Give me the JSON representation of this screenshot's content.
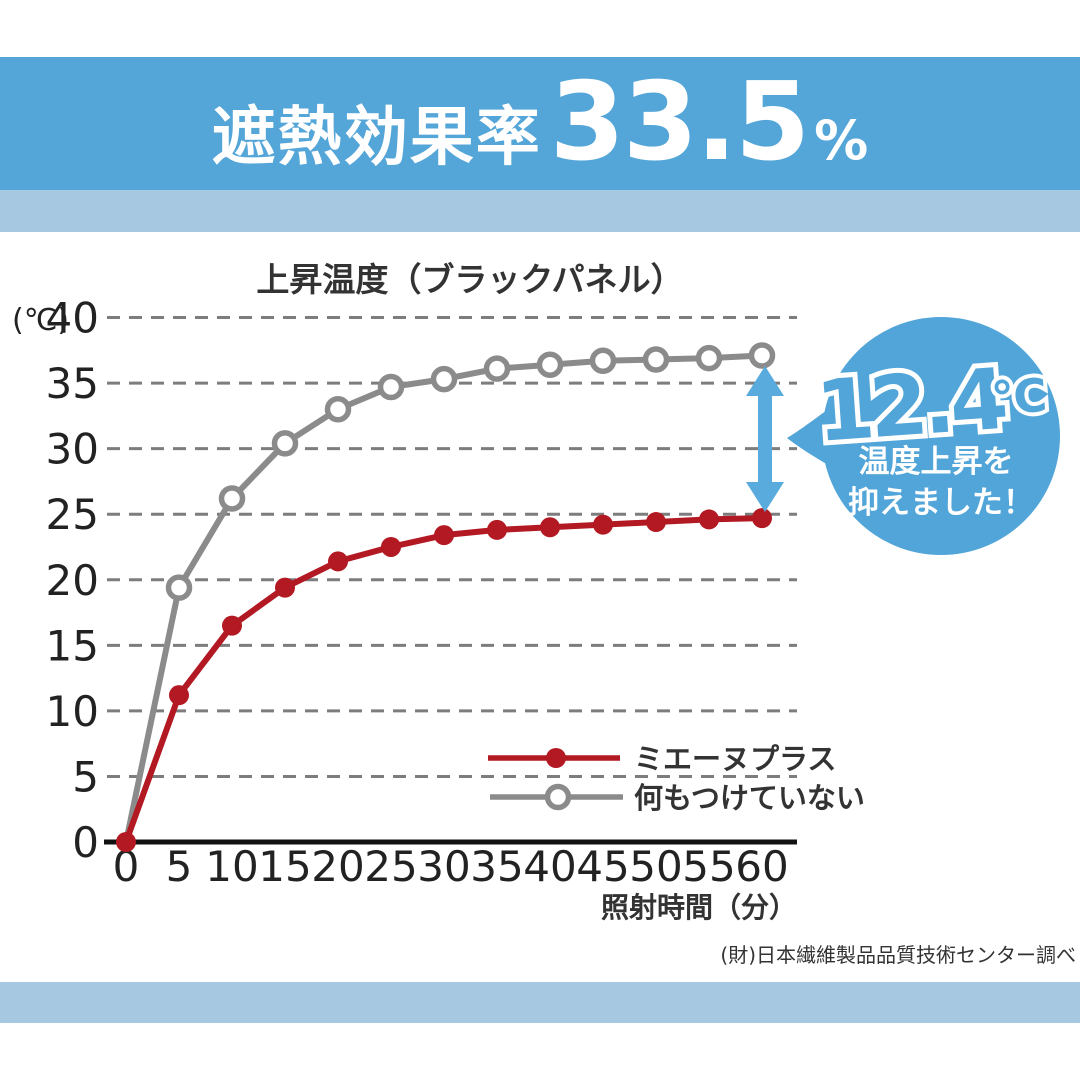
{
  "banner": {
    "title_prefix": "遮熱効果率",
    "title_value": "33.5",
    "title_unit": "%"
  },
  "chart_data": {
    "type": "line",
    "title": "上昇温度（ブラックパネル）",
    "xlabel": "照射時間（分）",
    "ylabel": "(℃)",
    "x": [
      0,
      5,
      10,
      15,
      20,
      25,
      30,
      35,
      40,
      45,
      50,
      55,
      60
    ],
    "y_ticks": [
      0,
      5,
      10,
      15,
      20,
      25,
      30,
      35,
      40
    ],
    "ylim": [
      0,
      40
    ],
    "grid": "dashed-horizontal",
    "legend_position": "inside-bottom-right",
    "series": [
      {
        "name": "ミエーヌプラス",
        "color": "#b31922",
        "marker": "filled-circle",
        "values": [
          0,
          11.2,
          16.5,
          19.4,
          21.4,
          22.5,
          23.4,
          23.8,
          24.0,
          24.2,
          24.4,
          24.6,
          24.7
        ]
      },
      {
        "name": "何もつけていない",
        "color": "#8b8b8b",
        "marker": "open-circle",
        "values": [
          0,
          19.4,
          26.2,
          30.4,
          33.0,
          34.7,
          35.3,
          36.1,
          36.4,
          36.7,
          36.8,
          36.9,
          37.1
        ]
      }
    ]
  },
  "annotation": {
    "value": "12.4",
    "unit": "℃",
    "line1": "温度上昇を",
    "line2": "抑えました！",
    "bubble_color": "#52a5d8",
    "arrow_color": "#5aabdd"
  },
  "footer": {
    "source": "(財)日本繊維製品品質技術センター調べ"
  },
  "colors": {
    "banner_blue": "#54a5d8",
    "stripe_blue": "#a6c8e0",
    "grid_gray": "#7d7d7d",
    "axis_black": "#111111",
    "text_dark": "#333333"
  }
}
